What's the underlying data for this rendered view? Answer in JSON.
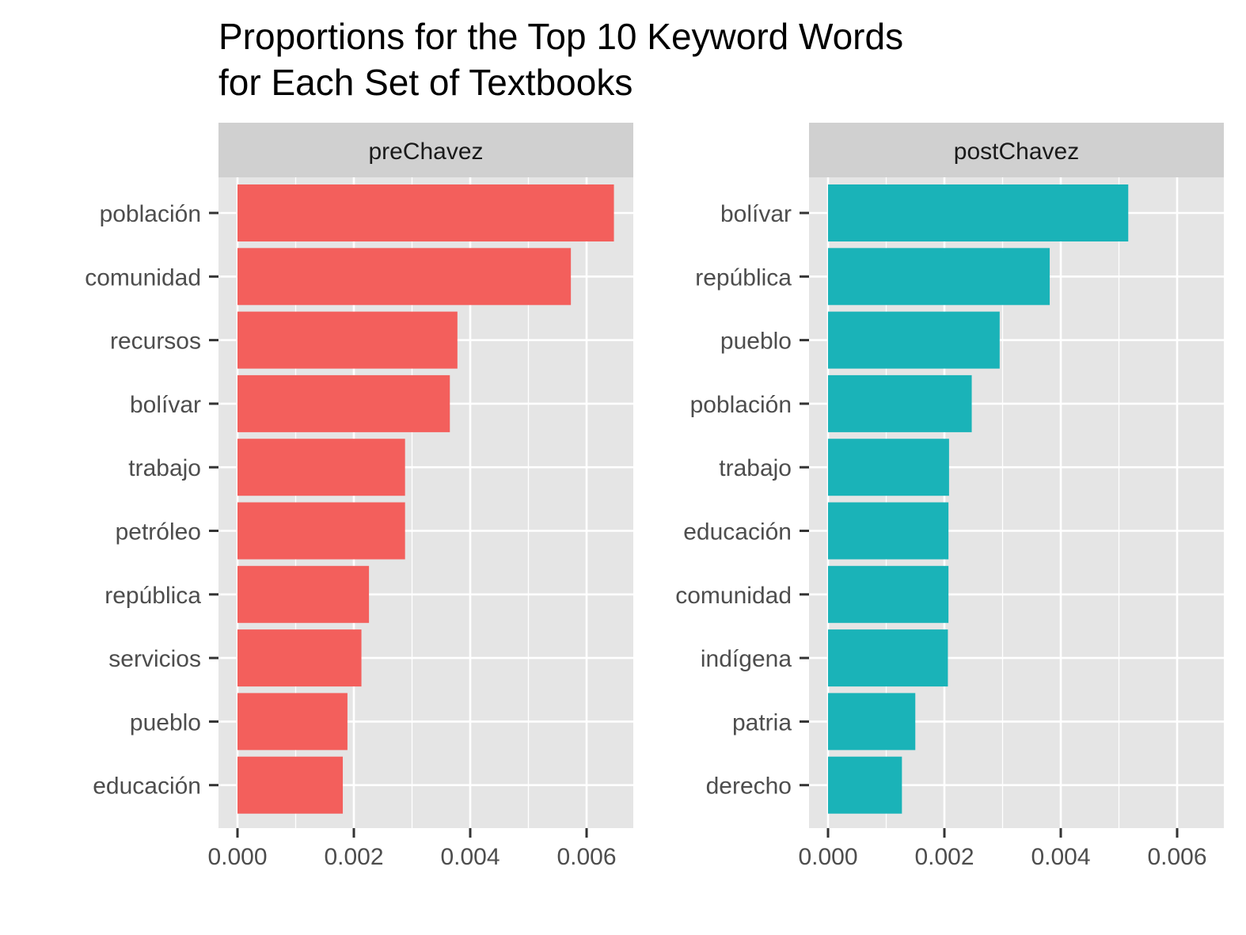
{
  "chart_data": {
    "type": "bar",
    "orientation": "horizontal",
    "title": "Proportions for the Top 10 Keyword Words\nfor Each Set of Textbooks",
    "xlabel": "",
    "ylabel": "",
    "xlim": [
      0,
      0.0068
    ],
    "x_ticks": [
      "0.000",
      "0.002",
      "0.004",
      "0.006"
    ],
    "x_tick_values": [
      0,
      0.002,
      0.004,
      0.006
    ],
    "grid": true,
    "legend": "none",
    "panel_background": "#e5e5e5",
    "strip_background": "#d0d0d0",
    "panels": [
      {
        "name": "preChavez",
        "color": "#f35f5c",
        "categories": [
          "población",
          "comunidad",
          "recursos",
          "bolívar",
          "trabajo",
          "petróleo",
          "república",
          "servicios",
          "pueblo",
          "educación"
        ],
        "values": [
          0.00647,
          0.00573,
          0.00378,
          0.00365,
          0.00288,
          0.00288,
          0.00226,
          0.00213,
          0.00189,
          0.00181
        ]
      },
      {
        "name": "postChavez",
        "color": "#1ab3b8",
        "categories": [
          "bolívar",
          "república",
          "pueblo",
          "población",
          "trabajo",
          "educación",
          "comunidad",
          "indígena",
          "patria",
          "derecho"
        ],
        "values": [
          0.00516,
          0.00381,
          0.00295,
          0.00247,
          0.00208,
          0.00207,
          0.00207,
          0.00206,
          0.0015,
          0.00127
        ]
      }
    ]
  }
}
